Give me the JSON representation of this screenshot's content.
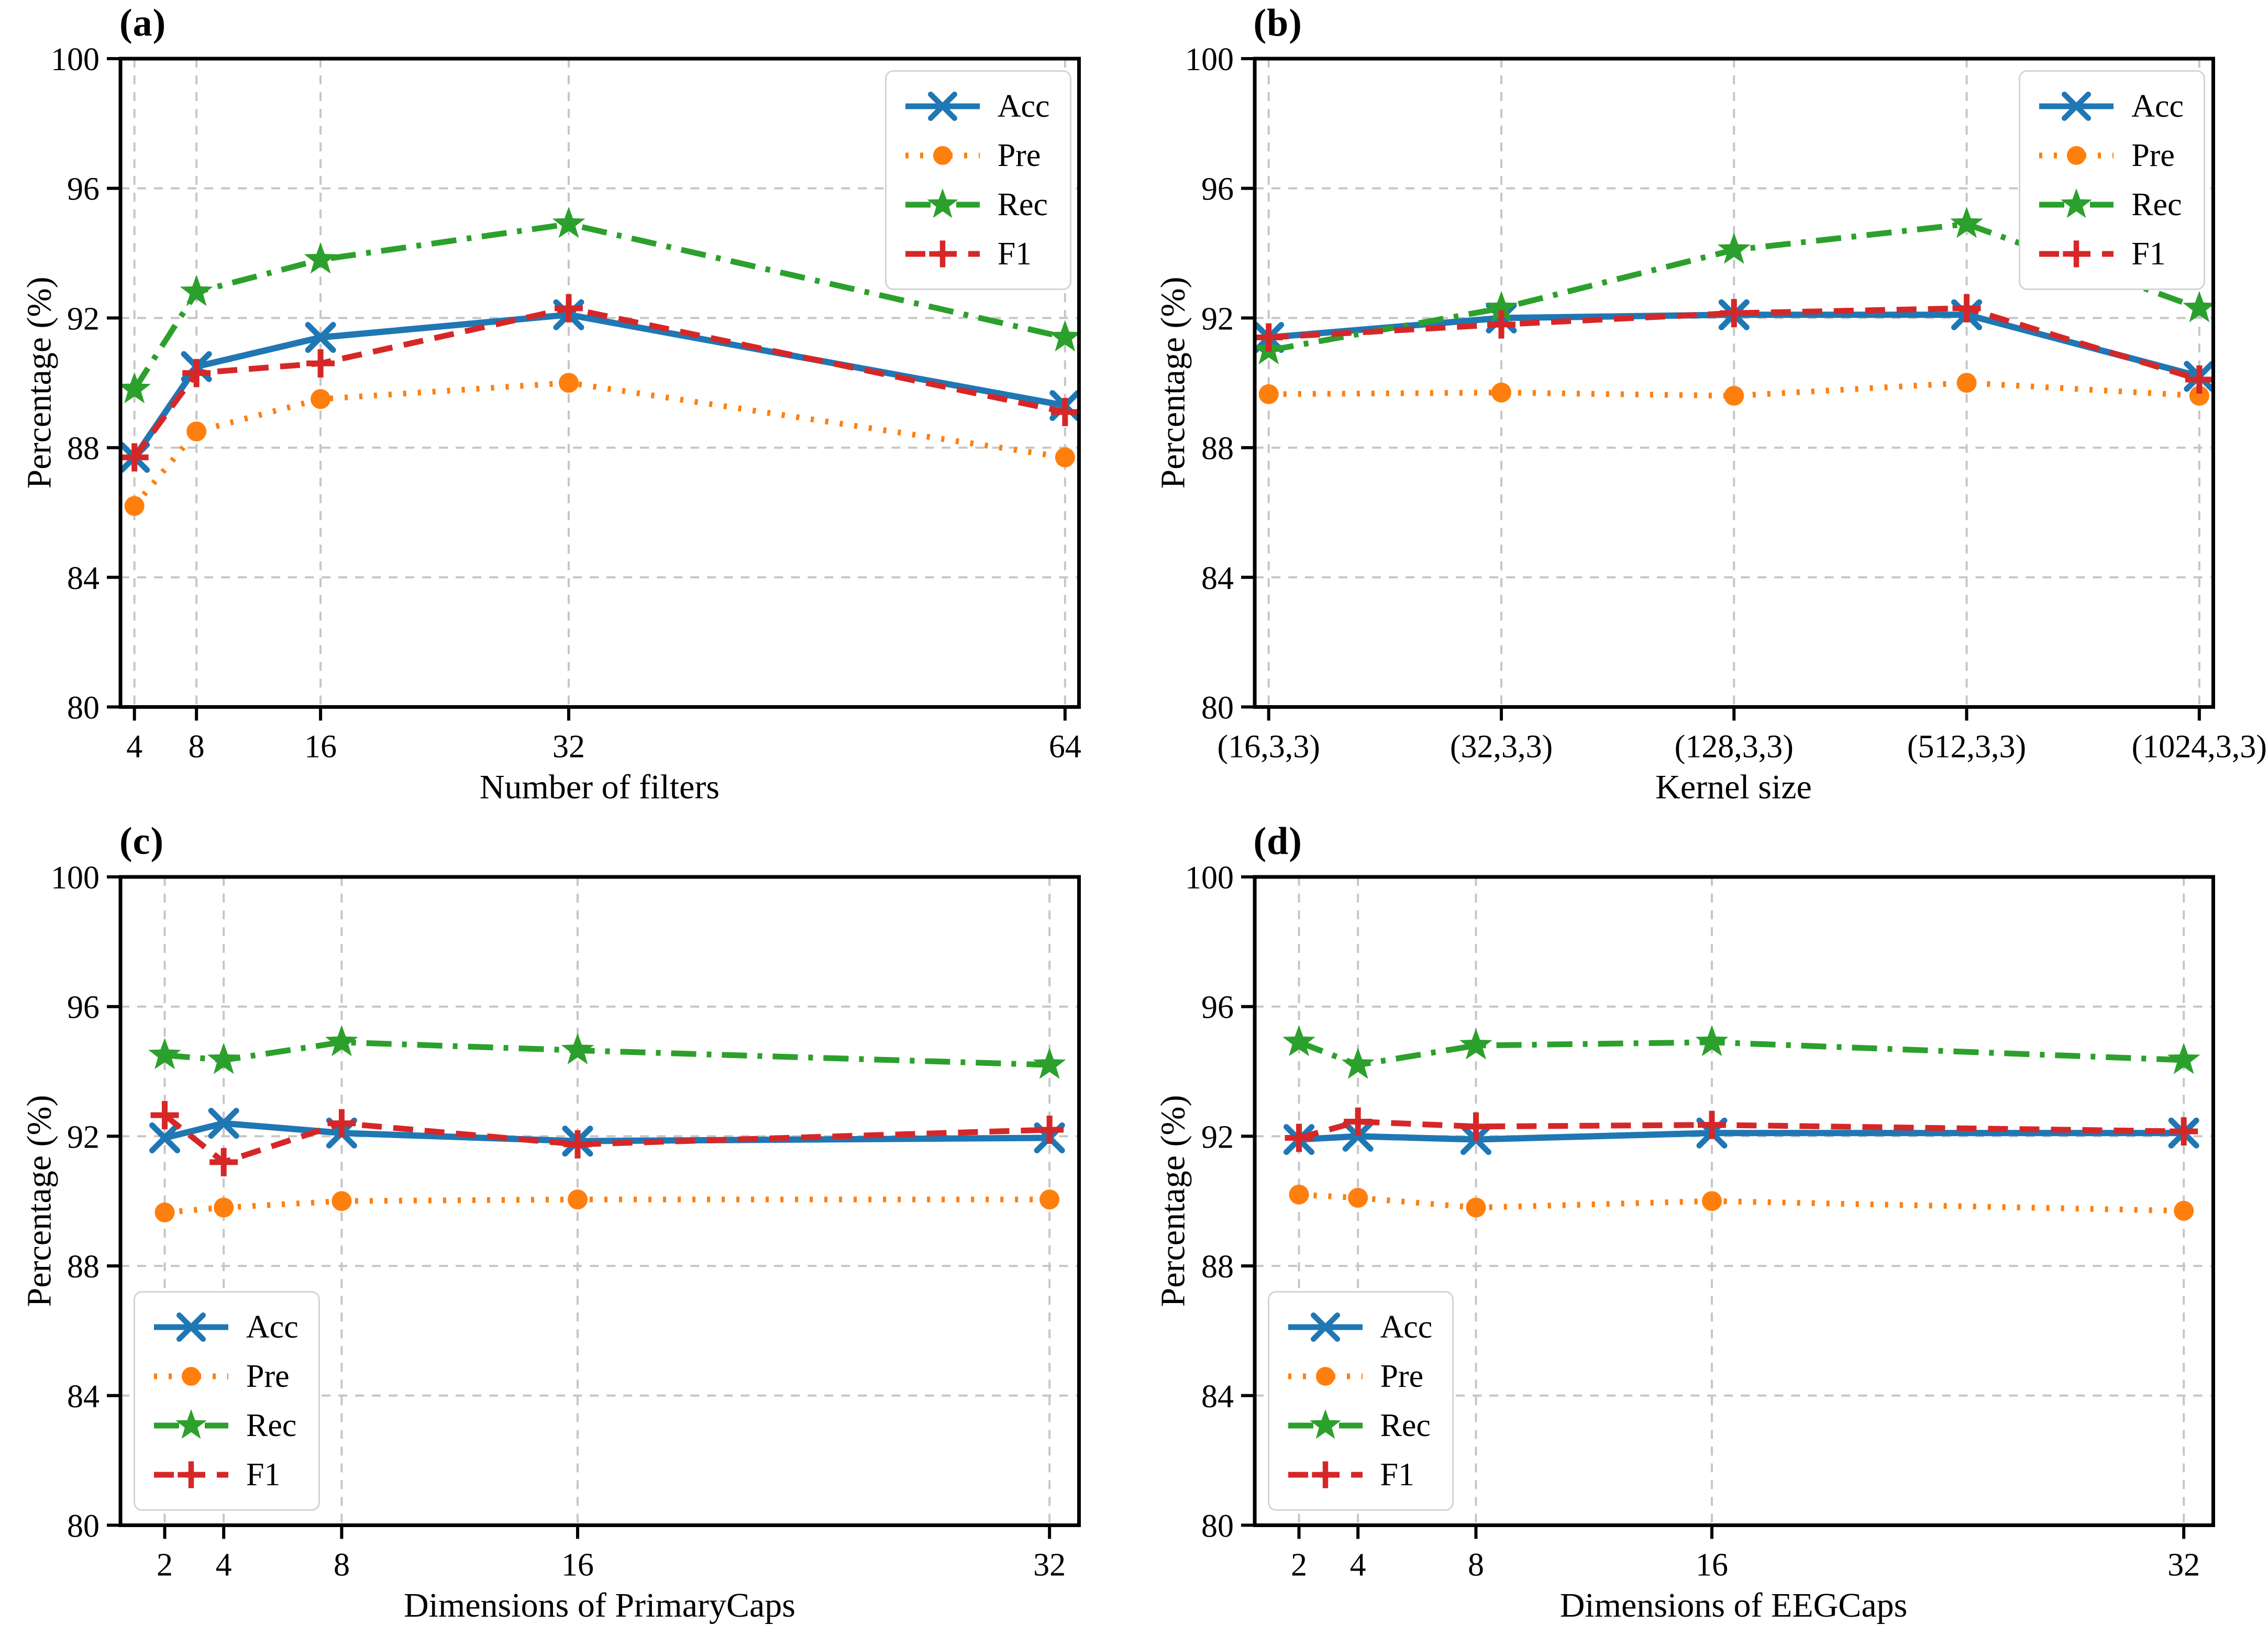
{
  "figure": {
    "ylabel": "Percentage (%)",
    "background": "#ffffff",
    "grid_color": "#c6c6c6",
    "axis_color": "#000000"
  },
  "chart_data": [
    {
      "type": "line",
      "panel_label": "(a)",
      "xlabel": "Number of filters",
      "ylabel": "Percentage (%)",
      "x_tick_labels": [
        "4",
        "8",
        "16",
        "32",
        "64"
      ],
      "x_values": [
        4,
        8,
        16,
        32,
        64
      ],
      "xlim": [
        3.1,
        64.9
      ],
      "ylim": [
        80,
        100
      ],
      "y_ticks": [
        80,
        84,
        88,
        92,
        96,
        100
      ],
      "grid": true,
      "legend_position": "upper-right",
      "series": [
        {
          "name": "Acc",
          "color": "#1f77b4",
          "line": "solid",
          "marker": "x",
          "values": [
            87.7,
            90.5,
            91.4,
            92.1,
            89.3
          ]
        },
        {
          "name": "Pre",
          "color": "#ff7f0e",
          "line": "dotted",
          "marker": "circle",
          "values": [
            86.2,
            88.5,
            89.5,
            90.0,
            87.7
          ]
        },
        {
          "name": "Rec",
          "color": "#2ca02c",
          "line": "dashdot",
          "marker": "star",
          "values": [
            89.8,
            92.8,
            93.8,
            94.9,
            91.4
          ]
        },
        {
          "name": "F1",
          "color": "#d62728",
          "line": "dashed",
          "marker": "plus",
          "values": [
            87.7,
            90.3,
            90.6,
            92.3,
            89.1
          ]
        }
      ]
    },
    {
      "type": "line",
      "panel_label": "(b)",
      "xlabel": "Kernel size",
      "ylabel": "Percentage (%)",
      "x_tick_labels": [
        "(16,3,3)",
        "(32,3,3)",
        "(128,3,3)",
        "(512,3,3)",
        "(1024,3,3)"
      ],
      "x_values": [
        0,
        1,
        2,
        3,
        4
      ],
      "xlim": [
        -0.06,
        4.06
      ],
      "ylim": [
        80,
        100
      ],
      "y_ticks": [
        80,
        84,
        88,
        92,
        96,
        100
      ],
      "grid": true,
      "legend_position": "upper-right",
      "series": [
        {
          "name": "Acc",
          "color": "#1f77b4",
          "line": "solid",
          "marker": "x",
          "values": [
            91.4,
            92.0,
            92.1,
            92.1,
            90.2
          ]
        },
        {
          "name": "Pre",
          "color": "#ff7f0e",
          "line": "dotted",
          "marker": "circle",
          "values": [
            89.65,
            89.7,
            89.6,
            90.0,
            89.6
          ]
        },
        {
          "name": "Rec",
          "color": "#2ca02c",
          "line": "dashdot",
          "marker": "star",
          "values": [
            91.0,
            92.3,
            94.1,
            94.9,
            92.3
          ]
        },
        {
          "name": "F1",
          "color": "#d62728",
          "line": "dashed",
          "marker": "plus",
          "values": [
            91.4,
            91.8,
            92.15,
            92.3,
            90.1
          ]
        }
      ]
    },
    {
      "type": "line",
      "panel_label": "(c)",
      "xlabel": "Dimensions of PrimaryCaps",
      "ylabel": "Percentage (%)",
      "x_tick_labels": [
        "2",
        "4",
        "8",
        "16",
        "32"
      ],
      "x_values": [
        2,
        4,
        8,
        16,
        32
      ],
      "xlim": [
        0.5,
        33.0
      ],
      "ylim": [
        80,
        100
      ],
      "y_ticks": [
        80,
        84,
        88,
        92,
        96,
        100
      ],
      "grid": true,
      "legend_position": "lower-left",
      "series": [
        {
          "name": "Acc",
          "color": "#1f77b4",
          "line": "solid",
          "marker": "x",
          "values": [
            91.95,
            92.4,
            92.1,
            91.85,
            91.95
          ]
        },
        {
          "name": "Pre",
          "color": "#ff7f0e",
          "line": "dotted",
          "marker": "circle",
          "values": [
            89.65,
            89.8,
            90.0,
            90.05,
            90.05
          ]
        },
        {
          "name": "Rec",
          "color": "#2ca02c",
          "line": "dashdot",
          "marker": "star",
          "values": [
            94.5,
            94.35,
            94.9,
            94.65,
            94.2
          ]
        },
        {
          "name": "F1",
          "color": "#d62728",
          "line": "dashed",
          "marker": "plus",
          "values": [
            92.65,
            91.2,
            92.4,
            91.75,
            92.2
          ]
        }
      ]
    },
    {
      "type": "line",
      "panel_label": "(d)",
      "xlabel": "Dimensions of EEGCaps",
      "ylabel": "Percentage (%)",
      "x_tick_labels": [
        "2",
        "4",
        "8",
        "16",
        "32"
      ],
      "x_values": [
        2,
        4,
        8,
        16,
        32
      ],
      "xlim": [
        0.5,
        33.0
      ],
      "ylim": [
        80,
        100
      ],
      "y_ticks": [
        80,
        84,
        88,
        92,
        96,
        100
      ],
      "grid": true,
      "legend_position": "lower-left",
      "series": [
        {
          "name": "Acc",
          "color": "#1f77b4",
          "line": "solid",
          "marker": "x",
          "values": [
            91.9,
            92.0,
            91.9,
            92.1,
            92.1
          ]
        },
        {
          "name": "Pre",
          "color": "#ff7f0e",
          "line": "dotted",
          "marker": "circle",
          "values": [
            90.2,
            90.1,
            89.8,
            90.0,
            89.7
          ]
        },
        {
          "name": "Rec",
          "color": "#2ca02c",
          "line": "dashdot",
          "marker": "star",
          "values": [
            94.9,
            94.2,
            94.8,
            94.9,
            94.35
          ]
        },
        {
          "name": "F1",
          "color": "#d62728",
          "line": "dashed",
          "marker": "plus",
          "values": [
            91.95,
            92.45,
            92.3,
            92.35,
            92.15
          ]
        }
      ]
    }
  ]
}
